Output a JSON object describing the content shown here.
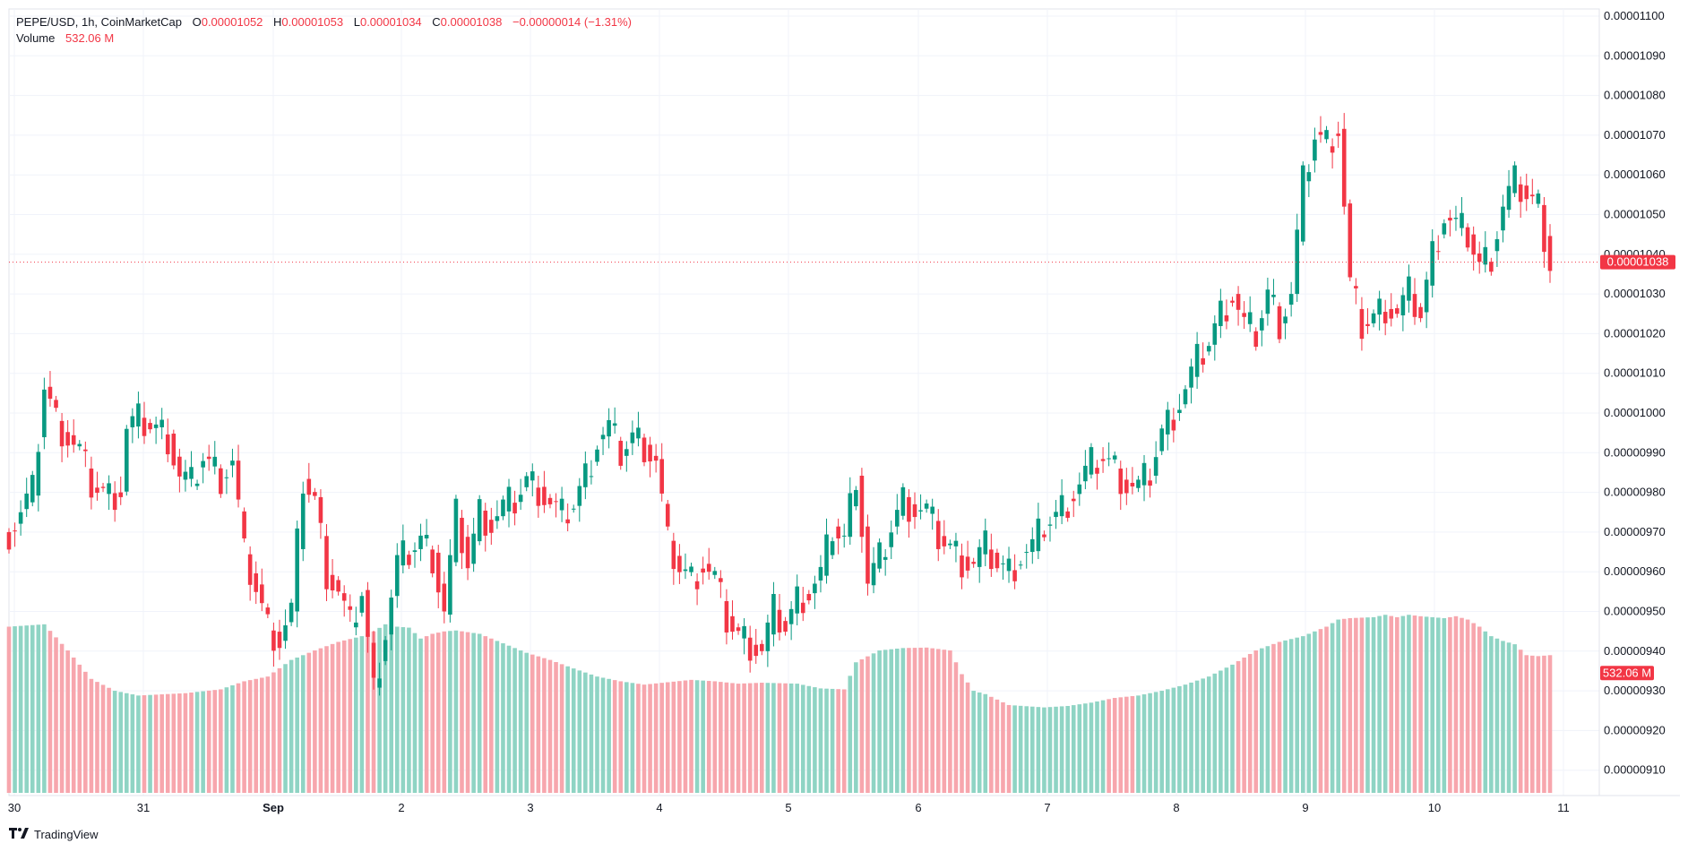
{
  "legend": {
    "symbol": "PEPE/USD, 1h, CoinMarketCap",
    "open_label": "O",
    "open": "0.00001052",
    "high_label": "H",
    "high": "0.00001053",
    "low_label": "L",
    "low": "0.00001034",
    "close_label": "C",
    "close": "0.00001038",
    "change": "−0.00000014 (−1.31%)",
    "volume_label": "Volume",
    "volume": "532.06 M"
  },
  "branding": {
    "name": "TradingView",
    "logo_icon": "tradingview-logo-icon"
  },
  "colors": {
    "up": "#089981",
    "down": "#f23645",
    "up_volume": "#8fd4c4",
    "down_volume": "#f7a6ad",
    "grid": "#f0f3fa",
    "axis_text": "#131722"
  },
  "chart_data": {
    "type": "candlestick",
    "title": "",
    "interval": "1h",
    "price_axis": {
      "min": 9.03e-06,
      "max": 1.101e-05,
      "ticks": [
        "0.00001100",
        "0.00001090",
        "0.00001080",
        "0.00001070",
        "0.00001060",
        "0.00001050",
        "0.00001040",
        "0.00001030",
        "0.00001020",
        "0.00001010",
        "0.00001000",
        "0.00000990",
        "0.00000980",
        "0.00000970",
        "0.00000960",
        "0.00000950",
        "0.00000940",
        "0.00000930",
        "0.00000920",
        "0.00000910"
      ],
      "tick_values": [
        1100,
        1090,
        1080,
        1070,
        1060,
        1050,
        1040,
        1030,
        1020,
        1010,
        1000,
        990,
        980,
        970,
        960,
        950,
        940,
        930,
        920,
        910
      ]
    },
    "time_axis": {
      "labels": [
        "30",
        "31",
        "Sep",
        "2",
        "3",
        "4",
        "5",
        "6",
        "7",
        "8",
        "9",
        "10",
        "11"
      ],
      "bold": [
        false,
        false,
        true,
        false,
        false,
        false,
        false,
        false,
        false,
        false,
        false,
        false,
        false
      ]
    },
    "last_price": {
      "label": "0.00001038",
      "value": 1038
    },
    "last_volume": {
      "label": "532.06 M"
    },
    "grid": true,
    "anchors": [
      [
        0,
        970
      ],
      [
        4,
        980
      ],
      [
        6,
        1007
      ],
      [
        8,
        998
      ],
      [
        12,
        990
      ],
      [
        14,
        982
      ],
      [
        17,
        979
      ],
      [
        19,
        981
      ],
      [
        20,
        996
      ],
      [
        22,
        998
      ],
      [
        24,
        997
      ],
      [
        27,
        994
      ],
      [
        29,
        984
      ],
      [
        31,
        982
      ],
      [
        33,
        989
      ],
      [
        36,
        984
      ],
      [
        38,
        988
      ],
      [
        40,
        964
      ],
      [
        42,
        956
      ],
      [
        44,
        946
      ],
      [
        46,
        943
      ],
      [
        48,
        950
      ],
      [
        50,
        983
      ],
      [
        52,
        978
      ],
      [
        54,
        960
      ],
      [
        56,
        955
      ],
      [
        58,
        946
      ],
      [
        60,
        955
      ],
      [
        62,
        930
      ],
      [
        64,
        945
      ],
      [
        66,
        962
      ],
      [
        68,
        965
      ],
      [
        70,
        968
      ],
      [
        72,
        964
      ],
      [
        74,
        950
      ],
      [
        76,
        974
      ],
      [
        78,
        962
      ],
      [
        80,
        975
      ],
      [
        82,
        972
      ],
      [
        84,
        976
      ],
      [
        86,
        978
      ],
      [
        88,
        983
      ],
      [
        90,
        981
      ],
      [
        92,
        977
      ],
      [
        94,
        974
      ],
      [
        96,
        977
      ],
      [
        98,
        984
      ],
      [
        100,
        993
      ],
      [
        102,
        996
      ],
      [
        104,
        990
      ],
      [
        106,
        994
      ],
      [
        108,
        992
      ],
      [
        110,
        988
      ],
      [
        112,
        967
      ],
      [
        114,
        961
      ],
      [
        116,
        958
      ],
      [
        118,
        962
      ],
      [
        120,
        958
      ],
      [
        122,
        948
      ],
      [
        124,
        944
      ],
      [
        126,
        942
      ],
      [
        128,
        940
      ],
      [
        130,
        950
      ],
      [
        132,
        946
      ],
      [
        134,
        953
      ],
      [
        136,
        955
      ],
      [
        138,
        959
      ],
      [
        140,
        971
      ],
      [
        142,
        968
      ],
      [
        144,
        985
      ],
      [
        146,
        957
      ],
      [
        148,
        963
      ],
      [
        150,
        971
      ],
      [
        152,
        978
      ],
      [
        154,
        976
      ],
      [
        156,
        975
      ],
      [
        158,
        969
      ],
      [
        160,
        966
      ],
      [
        162,
        963
      ],
      [
        164,
        962
      ],
      [
        166,
        966
      ],
      [
        168,
        962
      ],
      [
        170,
        960
      ],
      [
        172,
        964
      ],
      [
        174,
        966
      ],
      [
        176,
        972
      ],
      [
        178,
        974
      ],
      [
        180,
        978
      ],
      [
        182,
        982
      ],
      [
        184,
        987
      ],
      [
        186,
        989
      ],
      [
        188,
        986
      ],
      [
        190,
        982
      ],
      [
        192,
        981
      ],
      [
        194,
        985
      ],
      [
        196,
        995
      ],
      [
        198,
        1000
      ],
      [
        200,
        1006
      ],
      [
        202,
        1013
      ],
      [
        204,
        1018
      ],
      [
        206,
        1025
      ],
      [
        208,
        1030
      ],
      [
        210,
        1022
      ],
      [
        212,
        1020
      ],
      [
        214,
        1030
      ],
      [
        216,
        1023
      ],
      [
        218,
        1030
      ],
      [
        220,
        1058
      ],
      [
        222,
        1070
      ],
      [
        224,
        1068
      ],
      [
        226,
        1072
      ],
      [
        228,
        1032
      ],
      [
        230,
        1022
      ],
      [
        232,
        1024
      ],
      [
        234,
        1027
      ],
      [
        236,
        1025
      ],
      [
        238,
        1030
      ],
      [
        240,
        1025
      ],
      [
        242,
        1040
      ],
      [
        244,
        1050
      ],
      [
        246,
        1047
      ],
      [
        248,
        1045
      ],
      [
        250,
        1037
      ],
      [
        252,
        1040
      ],
      [
        254,
        1052
      ],
      [
        256,
        1058
      ],
      [
        258,
        1055
      ],
      [
        260,
        1052
      ],
      [
        262,
        1038
      ]
    ],
    "volume_anchors": [
      [
        0,
        350
      ],
      [
        6,
        355
      ],
      [
        10,
        300
      ],
      [
        14,
        240
      ],
      [
        18,
        215
      ],
      [
        22,
        205
      ],
      [
        30,
        210
      ],
      [
        36,
        218
      ],
      [
        40,
        235
      ],
      [
        44,
        245
      ],
      [
        48,
        280
      ],
      [
        52,
        300
      ],
      [
        56,
        318
      ],
      [
        60,
        330
      ],
      [
        62,
        340
      ],
      [
        64,
        355
      ],
      [
        66,
        350
      ],
      [
        68,
        348
      ],
      [
        70,
        325
      ],
      [
        72,
        335
      ],
      [
        74,
        340
      ],
      [
        76,
        342
      ],
      [
        80,
        335
      ],
      [
        84,
        315
      ],
      [
        88,
        295
      ],
      [
        92,
        280
      ],
      [
        96,
        262
      ],
      [
        100,
        245
      ],
      [
        104,
        235
      ],
      [
        108,
        228
      ],
      [
        112,
        233
      ],
      [
        116,
        238
      ],
      [
        120,
        235
      ],
      [
        124,
        230
      ],
      [
        128,
        232
      ],
      [
        134,
        230
      ],
      [
        138,
        220
      ],
      [
        142,
        218
      ],
      [
        144,
        275
      ],
      [
        148,
        300
      ],
      [
        152,
        305
      ],
      [
        156,
        306
      ],
      [
        160,
        300
      ],
      [
        162,
        250
      ],
      [
        164,
        215
      ],
      [
        166,
        208
      ],
      [
        170,
        185
      ],
      [
        176,
        180
      ],
      [
        180,
        183
      ],
      [
        184,
        190
      ],
      [
        188,
        200
      ],
      [
        192,
        205
      ],
      [
        196,
        215
      ],
      [
        200,
        228
      ],
      [
        204,
        245
      ],
      [
        208,
        270
      ],
      [
        212,
        300
      ],
      [
        216,
        318
      ],
      [
        220,
        330
      ],
      [
        224,
        350
      ],
      [
        226,
        365
      ],
      [
        228,
        368
      ],
      [
        232,
        370
      ],
      [
        234,
        375
      ],
      [
        236,
        370
      ],
      [
        238,
        375
      ],
      [
        240,
        372
      ],
      [
        242,
        370
      ],
      [
        244,
        368
      ],
      [
        246,
        372
      ],
      [
        248,
        365
      ],
      [
        250,
        350
      ],
      [
        252,
        330
      ],
      [
        254,
        320
      ],
      [
        256,
        313
      ],
      [
        258,
        290
      ],
      [
        260,
        288
      ],
      [
        262,
        290
      ]
    ],
    "volume_max": 420,
    "bar_count": 263
  }
}
